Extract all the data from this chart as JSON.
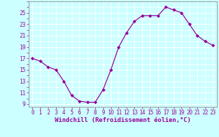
{
  "x": [
    0,
    1,
    2,
    3,
    4,
    5,
    6,
    7,
    8,
    9,
    10,
    11,
    12,
    13,
    14,
    15,
    16,
    17,
    18,
    19,
    20,
    21,
    22,
    23
  ],
  "y": [
    17,
    16.5,
    15.5,
    15,
    13,
    10.5,
    9.5,
    9.3,
    9.3,
    11.5,
    15,
    19,
    21.5,
    23.5,
    24.5,
    24.5,
    24.5,
    26,
    25.5,
    25,
    23,
    21,
    20,
    19.3
  ],
  "line_color": "#990099",
  "marker": "D",
  "markersize": 2.2,
  "linewidth": 0.9,
  "xlabel": "Windchill (Refroidissement éolien,°C)",
  "xlabel_fontsize": 6.5,
  "ylabel_ticks": [
    9,
    11,
    13,
    15,
    17,
    19,
    21,
    23,
    25
  ],
  "xlim": [
    -0.5,
    23.5
  ],
  "ylim": [
    8.5,
    27
  ],
  "xticks": [
    0,
    1,
    2,
    3,
    4,
    5,
    6,
    7,
    8,
    9,
    10,
    11,
    12,
    13,
    14,
    15,
    16,
    17,
    18,
    19,
    20,
    21,
    22,
    23
  ],
  "bg_color": "#ccffff",
  "grid_color": "#aadddd",
  "tick_color": "#990099",
  "tick_fontsize": 5.5,
  "spine_color": "#999999"
}
